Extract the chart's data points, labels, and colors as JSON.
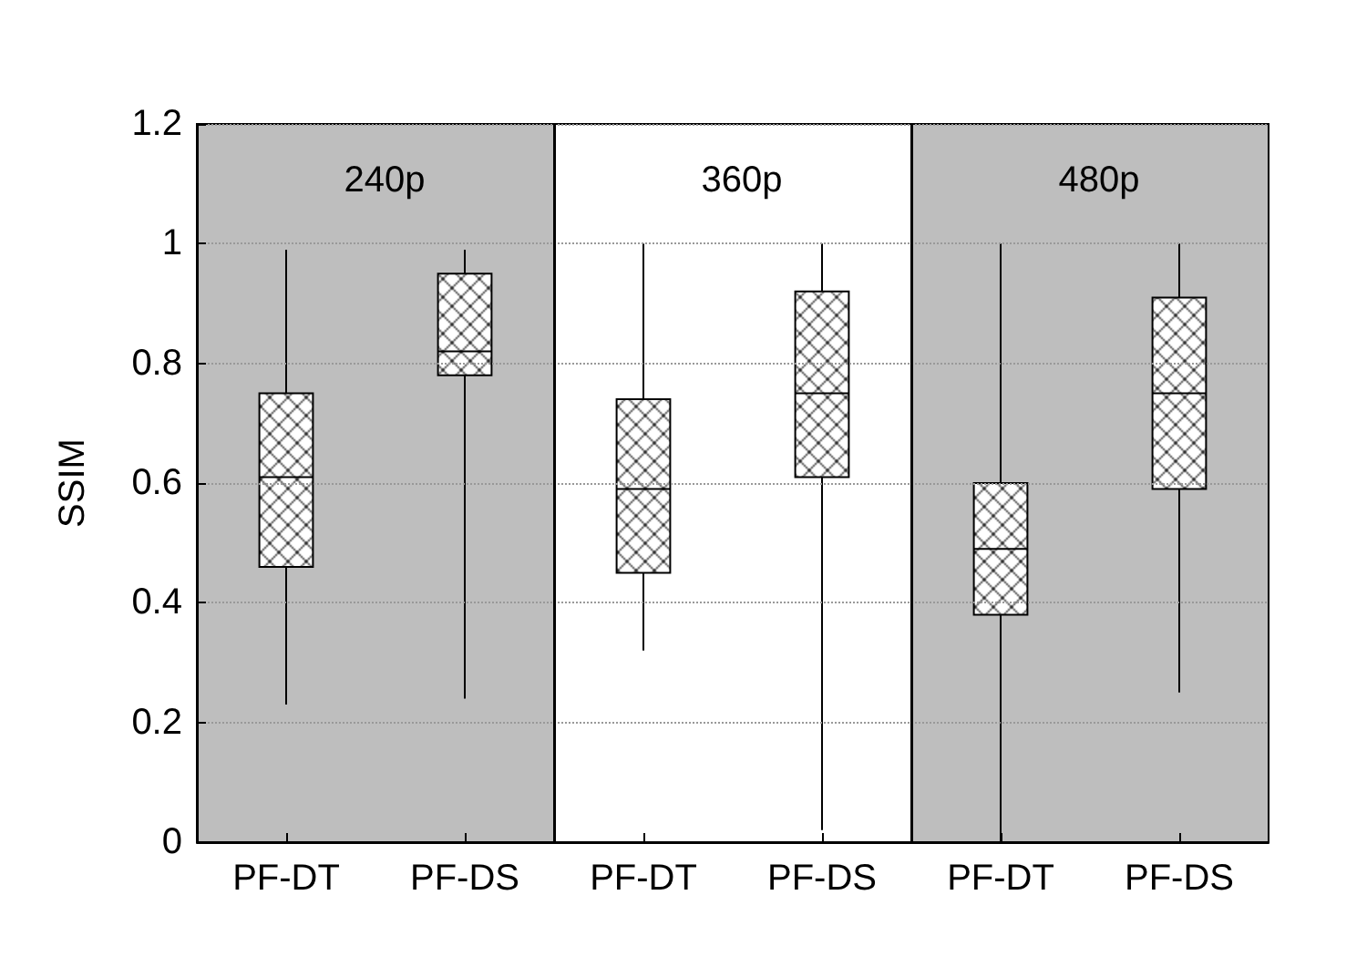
{
  "chart_data": [
    {
      "type": "box",
      "title": "240p",
      "ylabel": "SSIM",
      "categories": [
        "PF-DT",
        "PF-DS"
      ],
      "boxes": [
        {
          "low": 0.23,
          "q1": 0.46,
          "median": 0.61,
          "q3": 0.75,
          "high": 0.99
        },
        {
          "low": 0.24,
          "q1": 0.78,
          "median": 0.82,
          "q3": 0.95,
          "high": 0.99
        }
      ],
      "color": "#000000",
      "ylim": [
        0,
        1.2
      ],
      "yticks": [
        0,
        0.2,
        0.4,
        0.6,
        0.8,
        1,
        1.2
      ],
      "grid": "y",
      "bands": [
        {
          "axis": "x",
          "from": "PF-DT",
          "to": "PF-DS",
          "color": "#bebebe"
        }
      ]
    },
    {
      "type": "box",
      "title": "360p",
      "categories": [
        "PF-DT",
        "PF-DS"
      ],
      "boxes": [
        {
          "low": 0.32,
          "q1": 0.45,
          "median": 0.59,
          "q3": 0.74,
          "high": 1.0
        },
        {
          "low": 0.02,
          "q1": 0.61,
          "median": 0.75,
          "q3": 0.92,
          "high": 1.0
        }
      ],
      "color": "#000000",
      "ylim": [
        0,
        1.2
      ],
      "yticks": [
        0,
        0.2,
        0.4,
        0.6,
        0.8,
        1,
        1.2
      ],
      "grid": "y",
      "tick_labels": "x"
    },
    {
      "type": "box",
      "title": "480p",
      "categories": [
        "PF-DT",
        "PF-DS"
      ],
      "boxes": [
        {
          "low": 0.0,
          "q1": 0.38,
          "median": 0.49,
          "q3": 0.6,
          "high": 1.0
        },
        {
          "low": 0.25,
          "q1": 0.59,
          "median": 0.75,
          "q3": 0.91,
          "high": 1.0
        }
      ],
      "color": "#000000",
      "ylim": [
        0,
        1.2
      ],
      "yticks": [
        0,
        0.2,
        0.4,
        0.6,
        0.8,
        1,
        1.2
      ],
      "grid": "y",
      "tick_labels": "x",
      "bands": [
        {
          "axis": "x",
          "from": "PF-DT",
          "to": "PF-DS",
          "color": "#bebebe"
        }
      ]
    }
  ]
}
